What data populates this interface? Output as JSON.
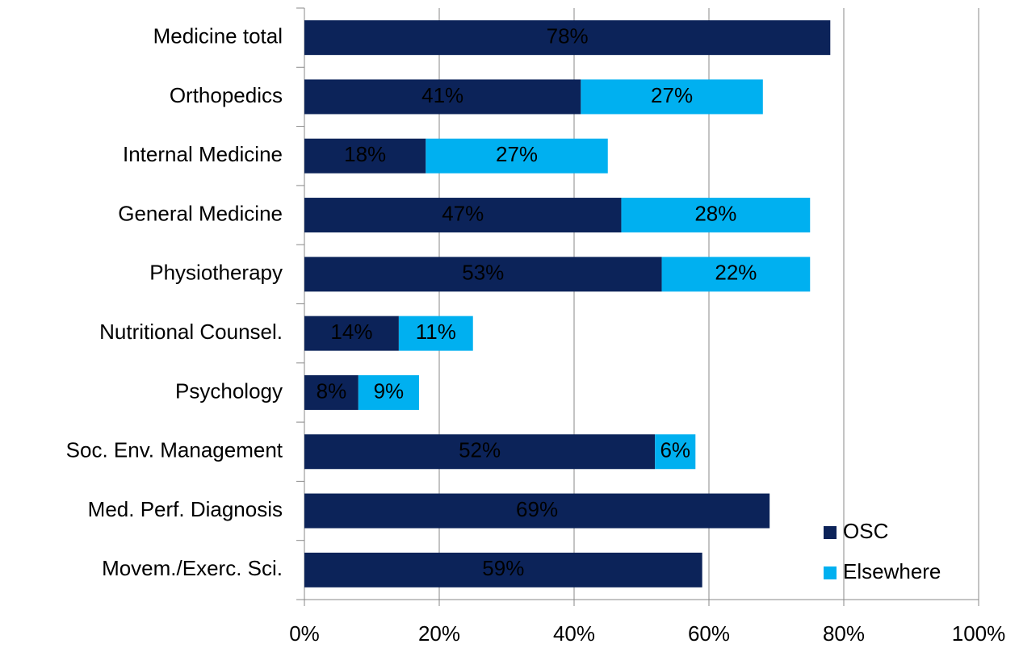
{
  "chart_data": {
    "type": "stacked-barh",
    "categories": [
      "Medicine total",
      "Orthopedics",
      "Internal Medicine",
      "General Medicine",
      "Physiotherapy",
      "Nutritional Counsel.",
      "Psychology",
      "Soc. Env. Management",
      "Med. Perf. Diagnosis",
      "Movem./Exerc. Sci."
    ],
    "series": [
      {
        "name": "OSC",
        "color": "#0c2359",
        "label_color": "#ffffff",
        "values": [
          78,
          41,
          18,
          47,
          53,
          14,
          8,
          52,
          69,
          59
        ],
        "value_labels": [
          "78%",
          "41%",
          "18%",
          "47%",
          "53%",
          "14%",
          "8%",
          "52%",
          "69%",
          "59%"
        ]
      },
      {
        "name": "Elsewhere",
        "color": "#00b0f0",
        "label_color": "#0c2359",
        "values": [
          null,
          27,
          27,
          28,
          22,
          11,
          9,
          6,
          null,
          null
        ],
        "value_labels": [
          null,
          "27%",
          "27%",
          "28%",
          "22%",
          "11%",
          "9%",
          "6%",
          null,
          null
        ]
      }
    ],
    "xlim": [
      0,
      100
    ],
    "xticks": [
      {
        "value": 0,
        "label": "0%"
      },
      {
        "value": 20,
        "label": "20%"
      },
      {
        "value": 40,
        "label": "40%"
      },
      {
        "value": 60,
        "label": "60%"
      },
      {
        "value": 80,
        "label": "80%"
      },
      {
        "value": 100,
        "label": "100%"
      }
    ],
    "grid": true,
    "legend": "lower right"
  }
}
